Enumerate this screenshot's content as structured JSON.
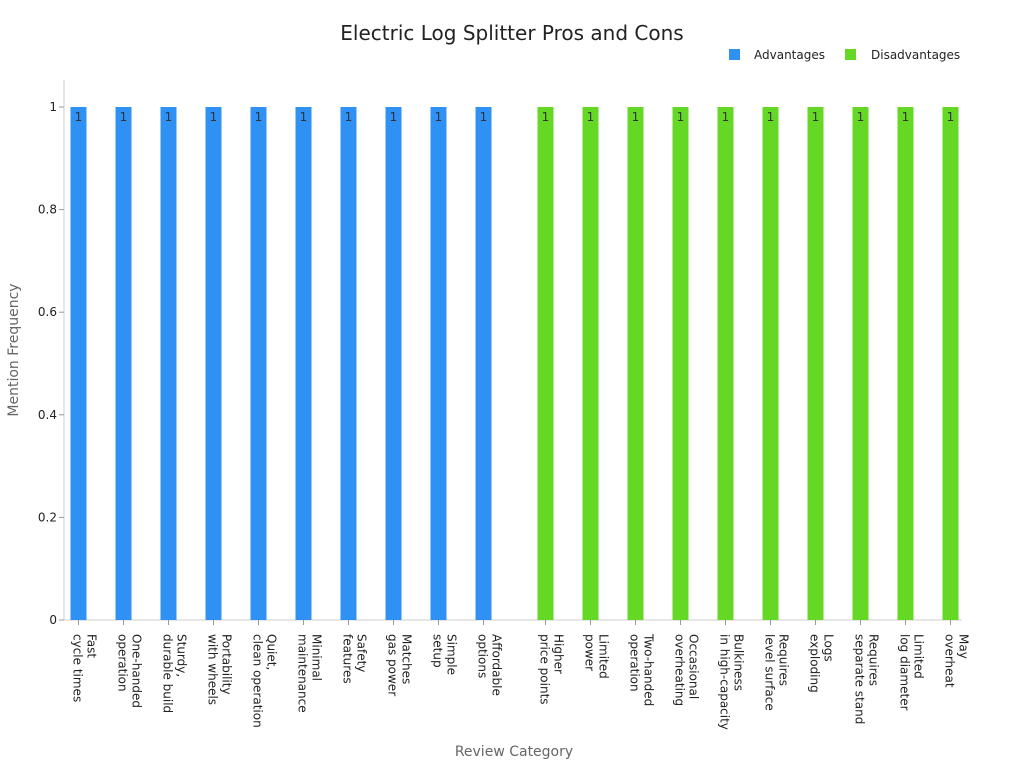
{
  "chart_data": {
    "type": "bar",
    "title": "Electric Log Splitter Pros and Cons",
    "xlabel": "Review Category",
    "ylabel": "Mention Frequency",
    "ylim": [
      0,
      1
    ],
    "yticks": [
      "0",
      "0.2",
      "0.4",
      "0.6",
      "0.8",
      "1"
    ],
    "grid": false,
    "legend_position": "top-right",
    "series": [
      {
        "name": "Advantages",
        "color": "#2f91f3",
        "categories": [
          [
            "Fast",
            "cycle times"
          ],
          [
            "One-handed",
            "operation"
          ],
          [
            "Sturdy,",
            "durable build"
          ],
          [
            "Portability",
            "with wheels"
          ],
          [
            "Quiet,",
            "clean operation"
          ],
          [
            "Minimal",
            "maintenance"
          ],
          [
            "Safety",
            "features"
          ],
          [
            "Matches",
            "gas power"
          ],
          [
            "Simple",
            "setup"
          ],
          [
            "Affordable",
            "options"
          ]
        ],
        "values": [
          1,
          1,
          1,
          1,
          1,
          1,
          1,
          1,
          1,
          1
        ],
        "labels": [
          "1",
          "1",
          "1",
          "1",
          "1",
          "1",
          "1",
          "1",
          "1",
          "1"
        ]
      },
      {
        "name": "Disadvantages",
        "color": "#65d826",
        "categories": [
          [
            "Higher",
            "price points"
          ],
          [
            "Limited",
            "power"
          ],
          [
            "Two-handed",
            "operation"
          ],
          [
            "Occasional",
            "overheating"
          ],
          [
            "Bulkiness",
            "in high-capacity"
          ],
          [
            "Requires",
            "level surface"
          ],
          [
            "Logs",
            "exploding"
          ],
          [
            "Requires",
            "separate stand"
          ],
          [
            "Limited",
            "log diameter"
          ],
          [
            "May",
            "overheat"
          ]
        ],
        "values": [
          1,
          1,
          1,
          1,
          1,
          1,
          1,
          1,
          1,
          1
        ],
        "labels": [
          "1",
          "1",
          "1",
          "1",
          "1",
          "1",
          "1",
          "1",
          "1",
          "1"
        ]
      }
    ]
  }
}
